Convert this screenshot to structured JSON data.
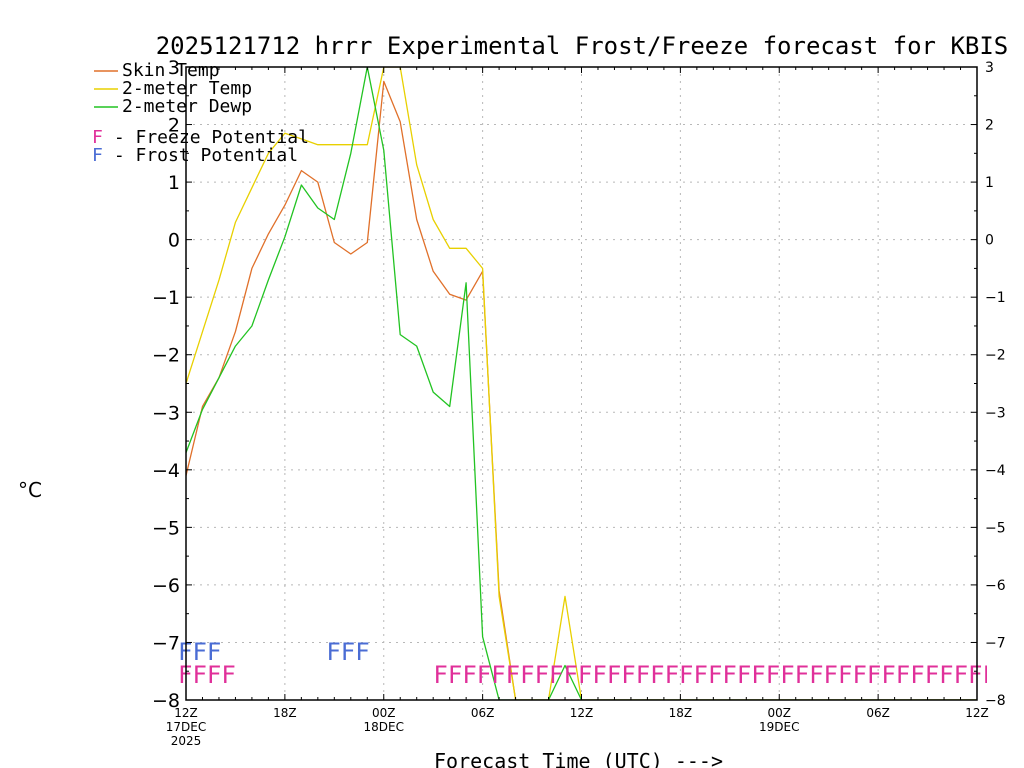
{
  "chart_data": {
    "type": "line",
    "title": "2025121712 hrrr Experimental Frost/Freeze forecast for KBIS",
    "ylabel": "°C",
    "xlabel": "Forecast Time (UTC) --->",
    "ylim": [
      -8,
      3
    ],
    "yticks": [
      3,
      2,
      1,
      0,
      -1,
      -2,
      -3,
      -4,
      -5,
      -6,
      -7,
      -8
    ],
    "ytick_labels": [
      "3",
      "2",
      "1",
      "0",
      "−1",
      "−2",
      "−3",
      "−4",
      "−5",
      "−6",
      "−7",
      "−8"
    ],
    "xlim": [
      0,
      48
    ],
    "xticks": [
      {
        "x": 0,
        "label": "12Z",
        "sub": [
          "17DEC",
          "2025"
        ]
      },
      {
        "x": 6,
        "label": "18Z",
        "sub": []
      },
      {
        "x": 12,
        "label": "00Z",
        "sub": [
          "18DEC"
        ]
      },
      {
        "x": 18,
        "label": "06Z",
        "sub": []
      },
      {
        "x": 24,
        "label": "12Z",
        "sub": []
      },
      {
        "x": 30,
        "label": "18Z",
        "sub": []
      },
      {
        "x": 36,
        "label": "00Z",
        "sub": [
          "19DEC"
        ]
      },
      {
        "x": 42,
        "label": "06Z",
        "sub": []
      },
      {
        "x": 48,
        "label": "12Z",
        "sub": []
      }
    ],
    "grid": true,
    "legend": [
      {
        "label": "Skin Temp",
        "color": "#e0702a"
      },
      {
        "label": "2-meter Temp",
        "color": "#e8d000"
      },
      {
        "label": "2-meter Dewp",
        "color": "#22c322"
      }
    ],
    "potential_legend": [
      {
        "letter": "F",
        "text": " - Freeze Potential",
        "color": "#e0309a"
      },
      {
        "letter": "F",
        "text": " - Frost Potential",
        "color": "#4a6cd4"
      }
    ],
    "series": [
      {
        "name": "Skin Temp",
        "color": "#e0702a",
        "x": [
          0,
          1,
          2,
          3,
          4,
          5,
          6,
          7,
          8,
          9,
          10,
          11,
          12,
          13,
          14,
          15,
          16,
          17,
          18,
          19,
          20,
          21,
          22,
          23,
          24,
          25,
          26,
          27,
          28,
          29,
          30,
          31,
          32,
          33,
          34,
          35,
          36,
          37,
          38,
          39,
          40,
          41,
          42,
          43,
          44,
          45,
          46,
          47,
          48
        ],
        "values": [
          -4.1,
          -2.9,
          -2.4,
          -1.6,
          -0.5,
          0.1,
          0.6,
          1.2,
          1.0,
          -0.05,
          -0.25,
          -0.05,
          2.75,
          2.05,
          0.35,
          -0.55,
          -0.95,
          -1.05,
          -0.55,
          -6.1,
          -8.0,
          -8.0,
          -8.0,
          -8.0,
          -8.0,
          -8.0,
          -8.0,
          -8.0,
          -8.0,
          -8.0,
          -8.0,
          -8.0,
          -8.0,
          -8.0,
          -8.0,
          -8.0,
          -8.0,
          -8.0,
          -8.0,
          -8.0,
          -8.0,
          -8.0,
          -8.0,
          -8.0,
          -8.0,
          -8.0,
          -8.0,
          -8.0,
          -8.0
        ]
      },
      {
        "name": "2-meter Temp",
        "color": "#e8d000",
        "x": [
          0,
          1,
          2,
          3,
          4,
          5,
          6,
          7,
          8,
          9,
          10,
          11,
          12,
          13,
          14,
          15,
          16,
          17,
          18,
          19,
          20,
          21,
          22,
          23,
          24,
          25,
          26,
          27,
          28,
          29,
          30,
          31,
          32,
          33,
          34,
          35,
          36,
          37,
          38,
          39,
          40,
          41,
          42,
          43,
          44,
          45,
          46,
          47,
          48
        ],
        "values": [
          -2.5,
          -1.6,
          -0.7,
          0.3,
          0.9,
          1.5,
          1.85,
          1.75,
          1.65,
          1.65,
          1.65,
          1.65,
          3.0,
          3.0,
          1.3,
          0.35,
          -0.15,
          -0.15,
          -0.5,
          -6.2,
          -8.0,
          -8.0,
          -8.0,
          -6.2,
          -8.0,
          -8.0,
          -8.0,
          -8.0,
          -8.0,
          -8.0,
          -8.0,
          -8.0,
          -8.0,
          -8.0,
          -8.0,
          -8.0,
          -8.0,
          -8.0,
          -8.0,
          -8.0,
          -8.0,
          -8.0,
          -8.0,
          -8.0,
          -8.0,
          -8.0,
          -8.0,
          -8.0,
          -8.0
        ]
      },
      {
        "name": "2-meter Dewp",
        "color": "#22c322",
        "x": [
          0,
          1,
          2,
          3,
          4,
          5,
          6,
          7,
          8,
          9,
          10,
          11,
          12,
          13,
          14,
          15,
          16,
          17,
          18,
          19,
          20,
          21,
          22,
          23,
          24,
          25,
          26,
          27,
          28,
          29,
          30,
          31,
          32,
          33,
          34,
          35,
          36,
          37,
          38,
          39,
          40,
          41,
          42,
          43,
          44,
          45,
          46,
          47,
          48
        ],
        "values": [
          -3.7,
          -2.95,
          -2.4,
          -1.85,
          -1.5,
          -0.7,
          0.05,
          0.95,
          0.55,
          0.35,
          1.5,
          3.0,
          1.55,
          -1.65,
          -1.85,
          -2.65,
          -2.9,
          -0.75,
          -6.9,
          -8.0,
          -8.0,
          -8.0,
          -8.0,
          -7.4,
          -8.0,
          -8.0,
          -8.0,
          -8.0,
          -8.0,
          -8.0,
          -8.0,
          -8.0,
          -8.0,
          -8.0,
          -8.0,
          -8.0,
          -8.0,
          -8.0,
          -8.0,
          -8.0,
          -8.0,
          -8.0,
          -8.0,
          -8.0,
          -8.0,
          -8.0,
          -8.0,
          -8.0,
          -8.0
        ]
      }
    ],
    "frost_marks": {
      "color": "#4a6cd4",
      "level": -7.15,
      "groups": [
        {
          "x": 0,
          "text": "FFF"
        },
        {
          "x": 9,
          "text": "FFF"
        }
      ]
    },
    "freeze_marks": {
      "color": "#e0309a",
      "level": -7.55,
      "groups": [
        {
          "x": 0,
          "text": "FFFF"
        },
        {
          "x": 15.5,
          "text": "FFFFFFFFFFFFFFFFFFFFFFFFFFFFFFFFFFFFFFFFFFFFFFFFFFFFFFFFFFFFFFFFFFFFFFFFFFFFFFFFFFFFFFFFFFFFFFFFFFFFFFFFFFFFFF"
        }
      ]
    }
  }
}
